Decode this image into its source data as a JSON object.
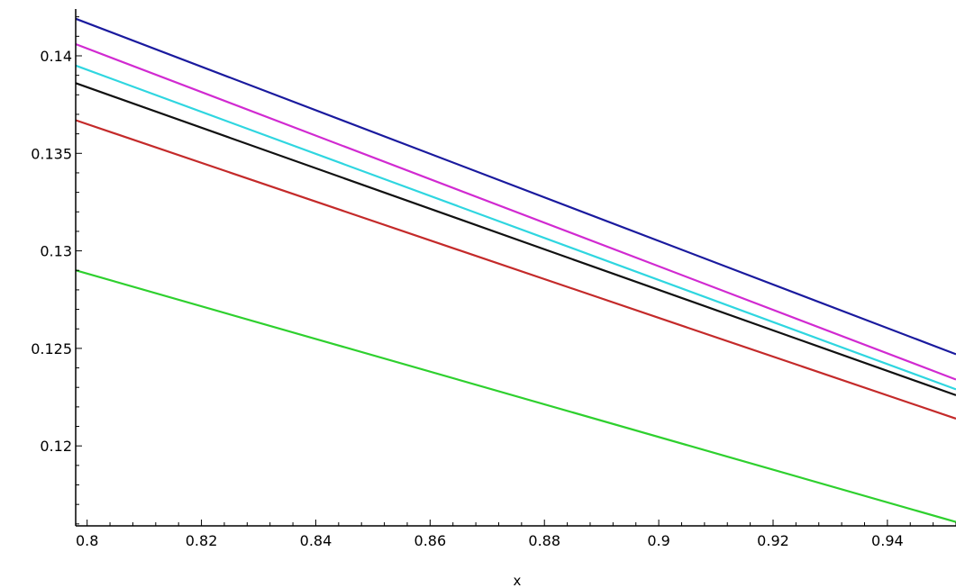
{
  "chart_data": {
    "type": "line",
    "title": "",
    "xlabel": "x",
    "ylabel": "",
    "xlim": [
      0.798,
      0.952
    ],
    "ylim": [
      0.1159,
      0.1424
    ],
    "grid": false,
    "legend": "none",
    "x_ticks": [
      {
        "value": 0.8,
        "label": "0.8"
      },
      {
        "value": 0.82,
        "label": "0.82"
      },
      {
        "value": 0.84,
        "label": "0.84"
      },
      {
        "value": 0.86,
        "label": "0.86"
      },
      {
        "value": 0.88,
        "label": "0.88"
      },
      {
        "value": 0.9,
        "label": "0.9"
      },
      {
        "value": 0.92,
        "label": "0.92"
      },
      {
        "value": 0.94,
        "label": "0.94"
      }
    ],
    "y_ticks": [
      {
        "value": 0.12,
        "label": "0.12"
      },
      {
        "value": 0.125,
        "label": "0.125"
      },
      {
        "value": 0.13,
        "label": "0.13"
      },
      {
        "value": 0.135,
        "label": "0.135"
      },
      {
        "value": 0.14,
        "label": "0.14"
      }
    ],
    "series": [
      {
        "color": "#1a1a9e",
        "x": [
          0.798,
          0.952
        ],
        "y": [
          0.1419,
          0.1247
        ]
      },
      {
        "color": "#d12ad1",
        "x": [
          0.798,
          0.952
        ],
        "y": [
          0.1406,
          0.1234
        ]
      },
      {
        "color": "#2fd6e0",
        "x": [
          0.798,
          0.952
        ],
        "y": [
          0.1395,
          0.1229
        ]
      },
      {
        "color": "#111111",
        "x": [
          0.798,
          0.952
        ],
        "y": [
          0.1386,
          0.1226
        ]
      },
      {
        "color": "#c42a2a",
        "x": [
          0.798,
          0.952
        ],
        "y": [
          0.1367,
          0.1214
        ]
      },
      {
        "color": "#2ed02e",
        "x": [
          0.798,
          0.952
        ],
        "y": [
          0.129,
          0.1161
        ]
      }
    ]
  }
}
